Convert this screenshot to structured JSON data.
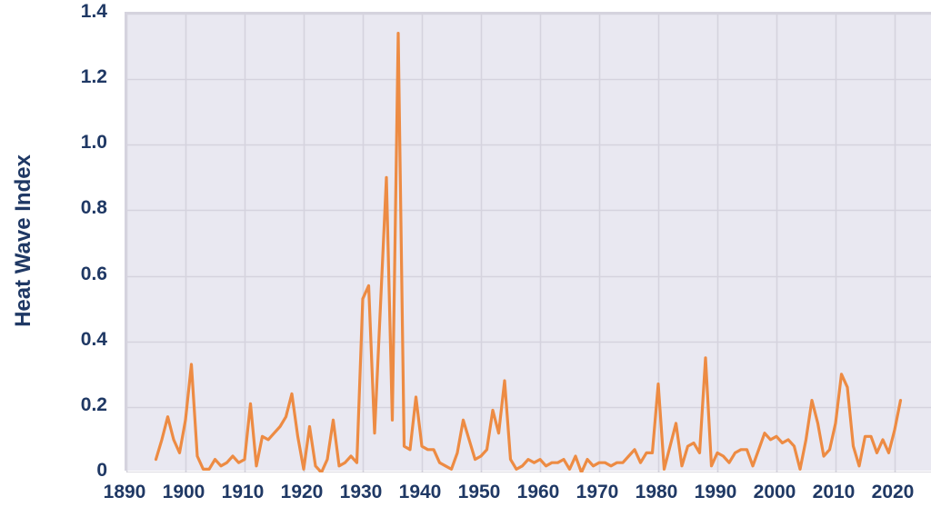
{
  "chart_data": {
    "type": "line",
    "title": "",
    "ylabel": "Heat Wave Index",
    "xlabel": "",
    "ylim": [
      0,
      1.4
    ],
    "xlim": [
      1890,
      2026
    ],
    "grid": "both",
    "legend": "none",
    "y_ticks": [
      "1.4",
      "1.2",
      "1.0",
      "0.8",
      "0.6",
      "0.4",
      "0.2",
      "0"
    ],
    "x_ticks": [
      1890,
      1900,
      1910,
      1920,
      1930,
      1940,
      1950,
      1960,
      1970,
      1980,
      1990,
      2000,
      2010,
      2020
    ],
    "series": [
      {
        "name": "Heat Wave Index",
        "years": [
          1895,
          1896,
          1897,
          1898,
          1899,
          1900,
          1901,
          1902,
          1903,
          1904,
          1905,
          1906,
          1907,
          1908,
          1909,
          1910,
          1911,
          1912,
          1913,
          1914,
          1915,
          1916,
          1917,
          1918,
          1919,
          1920,
          1921,
          1922,
          1923,
          1924,
          1925,
          1926,
          1927,
          1928,
          1929,
          1930,
          1931,
          1932,
          1933,
          1934,
          1935,
          1936,
          1937,
          1938,
          1939,
          1940,
          1941,
          1942,
          1943,
          1944,
          1945,
          1946,
          1947,
          1948,
          1949,
          1950,
          1951,
          1952,
          1953,
          1954,
          1955,
          1956,
          1957,
          1958,
          1959,
          1960,
          1961,
          1962,
          1963,
          1964,
          1965,
          1966,
          1967,
          1968,
          1969,
          1970,
          1971,
          1972,
          1973,
          1974,
          1975,
          1976,
          1977,
          1978,
          1979,
          1980,
          1981,
          1982,
          1983,
          1984,
          1985,
          1986,
          1987,
          1988,
          1989,
          1990,
          1991,
          1992,
          1993,
          1994,
          1995,
          1996,
          1997,
          1998,
          1999,
          2000,
          2001,
          2002,
          2003,
          2004,
          2005,
          2006,
          2007,
          2008,
          2009,
          2010,
          2011,
          2012,
          2013,
          2014,
          2015,
          2016,
          2017,
          2018,
          2019,
          2020,
          2021
        ],
        "values": [
          0.04,
          0.1,
          0.17,
          0.1,
          0.06,
          0.16,
          0.33,
          0.05,
          0.01,
          0.01,
          0.04,
          0.02,
          0.03,
          0.05,
          0.03,
          0.04,
          0.21,
          0.02,
          0.11,
          0.1,
          0.12,
          0.14,
          0.17,
          0.24,
          0.11,
          0.01,
          0.14,
          0.02,
          0.0,
          0.04,
          0.16,
          0.02,
          0.03,
          0.05,
          0.03,
          0.53,
          0.57,
          0.12,
          0.51,
          0.9,
          0.16,
          1.34,
          0.08,
          0.07,
          0.23,
          0.08,
          0.07,
          0.07,
          0.03,
          0.02,
          0.01,
          0.06,
          0.16,
          0.1,
          0.04,
          0.05,
          0.07,
          0.19,
          0.12,
          0.28,
          0.04,
          0.01,
          0.02,
          0.04,
          0.03,
          0.04,
          0.02,
          0.03,
          0.03,
          0.04,
          0.01,
          0.05,
          0.0,
          0.04,
          0.02,
          0.03,
          0.03,
          0.02,
          0.03,
          0.03,
          0.05,
          0.07,
          0.03,
          0.06,
          0.06,
          0.27,
          0.01,
          0.08,
          0.15,
          0.02,
          0.08,
          0.09,
          0.06,
          0.35,
          0.02,
          0.06,
          0.05,
          0.03,
          0.06,
          0.07,
          0.07,
          0.02,
          0.07,
          0.12,
          0.1,
          0.11,
          0.09,
          0.1,
          0.08,
          0.01,
          0.1,
          0.22,
          0.15,
          0.05,
          0.07,
          0.15,
          0.3,
          0.26,
          0.08,
          0.02,
          0.11,
          0.11,
          0.06,
          0.1,
          0.06,
          0.13,
          0.22
        ]
      }
    ],
    "colors": {
      "line": "#ED8B43",
      "plot_background": "#E9E8F1",
      "gridline": "#D5D3DE",
      "bottom_axis_line": "#C6C4CF",
      "axis_text": "#1F3864",
      "outer_background": "#FFFFFF"
    }
  }
}
